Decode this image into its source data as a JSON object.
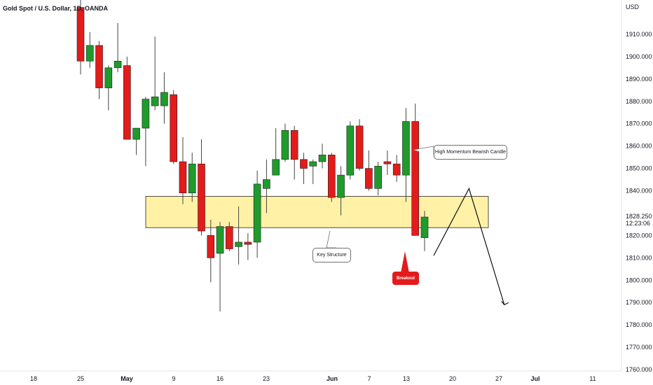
{
  "header": {
    "title": "Gold Spot / U.S. Dollar, 1D, OANDA",
    "currency": "USD"
  },
  "price": {
    "last": "1828.250",
    "countdown": "12:23:06"
  },
  "annotations": {
    "momentum_label": "High Momentum Bearish Candle",
    "structure_label": "Key Structure",
    "breakout_label": "Breakout"
  },
  "colors": {
    "bull": "#1e9b2b",
    "bear": "#e31b1b",
    "zone_fill": "#fff2a6",
    "zone_border": "#222222",
    "wick": "#444444"
  },
  "chart_data": {
    "type": "candlestick",
    "title": "Gold Spot / U.S. Dollar, 1D, OANDA",
    "xlabel": "",
    "ylabel": "USD",
    "ylim": [
      1760,
      1920
    ],
    "grid": false,
    "y_ticks": [
      "1910.000",
      "1900.000",
      "1890.000",
      "1880.000",
      "1870.000",
      "1860.000",
      "1850.000",
      "1840.000",
      "1820.000",
      "1810.000",
      "1800.000",
      "1790.000",
      "1780.000",
      "1770.000",
      "1760.000"
    ],
    "x_ticks": [
      {
        "label": "18",
        "bold": false
      },
      {
        "label": "25",
        "bold": false
      },
      {
        "label": "May",
        "bold": true
      },
      {
        "label": "9",
        "bold": false
      },
      {
        "label": "16",
        "bold": false
      },
      {
        "label": "23",
        "bold": false
      },
      {
        "label": "Jun",
        "bold": true
      },
      {
        "label": "7",
        "bold": false
      },
      {
        "label": "13",
        "bold": false
      },
      {
        "label": "20",
        "bold": false
      },
      {
        "label": "27",
        "bold": false
      },
      {
        "label": "Jul",
        "bold": true
      },
      {
        "label": "11",
        "bold": false
      }
    ],
    "candles": [
      {
        "o": 1922.0,
        "h": 1926.0,
        "l": 1892.0,
        "c": 1898.0
      },
      {
        "o": 1898.0,
        "h": 1911.0,
        "l": 1895.0,
        "c": 1905.0
      },
      {
        "o": 1905.0,
        "h": 1907.0,
        "l": 1881.0,
        "c": 1886.0
      },
      {
        "o": 1886.0,
        "h": 1896.0,
        "l": 1876.0,
        "c": 1895.0
      },
      {
        "o": 1895.0,
        "h": 1915.0,
        "l": 1893.0,
        "c": 1898.0
      },
      {
        "o": 1896.0,
        "h": 1900.0,
        "l": 1863.0,
        "c": 1863.0
      },
      {
        "o": 1863.0,
        "h": 1868.0,
        "l": 1856.0,
        "c": 1868.0
      },
      {
        "o": 1868.0,
        "h": 1882.0,
        "l": 1851.0,
        "c": 1881.0
      },
      {
        "o": 1878.0,
        "h": 1909.0,
        "l": 1876.0,
        "c": 1882.0
      },
      {
        "o": 1878.0,
        "h": 1893.0,
        "l": 1870.0,
        "c": 1884.0
      },
      {
        "o": 1883.0,
        "h": 1885.0,
        "l": 1852.0,
        "c": 1853.0
      },
      {
        "o": 1853.0,
        "h": 1864.0,
        "l": 1834.0,
        "c": 1839.0
      },
      {
        "o": 1839.0,
        "h": 1857.0,
        "l": 1835.0,
        "c": 1852.0
      },
      {
        "o": 1852.0,
        "h": 1863.0,
        "l": 1820.0,
        "c": 1822.0
      },
      {
        "o": 1820.0,
        "h": 1827.0,
        "l": 1799.0,
        "c": 1810.0
      },
      {
        "o": 1812.0,
        "h": 1826.0,
        "l": 1786.0,
        "c": 1824.0
      },
      {
        "o": 1824.0,
        "h": 1826.0,
        "l": 1813.0,
        "c": 1814.0
      },
      {
        "o": 1815.0,
        "h": 1833.0,
        "l": 1807.0,
        "c": 1817.0
      },
      {
        "o": 1817.0,
        "h": 1821.0,
        "l": 1809.0,
        "c": 1816.0
      },
      {
        "o": 1817.0,
        "h": 1849.0,
        "l": 1810.0,
        "c": 1843.0
      },
      {
        "o": 1841.0,
        "h": 1854.0,
        "l": 1830.0,
        "c": 1845.0
      },
      {
        "o": 1847.0,
        "h": 1868.0,
        "l": 1847.0,
        "c": 1854.0
      },
      {
        "o": 1854.0,
        "h": 1870.0,
        "l": 1853.0,
        "c": 1867.0
      },
      {
        "o": 1867.0,
        "h": 1869.0,
        "l": 1845.0,
        "c": 1854.0
      },
      {
        "o": 1854.0,
        "h": 1857.0,
        "l": 1843.0,
        "c": 1850.0
      },
      {
        "o": 1851.0,
        "h": 1854.0,
        "l": 1843.0,
        "c": 1853.0
      },
      {
        "o": 1853.0,
        "h": 1861.0,
        "l": 1850.0,
        "c": 1856.0
      },
      {
        "o": 1856.0,
        "h": 1857.0,
        "l": 1835.0,
        "c": 1837.0
      },
      {
        "o": 1837.0,
        "h": 1851.0,
        "l": 1829.0,
        "c": 1847.0
      },
      {
        "o": 1847.0,
        "h": 1871.0,
        "l": 1845.0,
        "c": 1869.0
      },
      {
        "o": 1869.0,
        "h": 1872.0,
        "l": 1849.0,
        "c": 1850.0
      },
      {
        "o": 1850.0,
        "h": 1858.0,
        "l": 1840.0,
        "c": 1841.0
      },
      {
        "o": 1841.0,
        "h": 1853.0,
        "l": 1838.0,
        "c": 1851.0
      },
      {
        "o": 1853.0,
        "h": 1858.0,
        "l": 1847.0,
        "c": 1852.0
      },
      {
        "o": 1852.0,
        "h": 1856.0,
        "l": 1844.0,
        "c": 1847.0
      },
      {
        "o": 1847.0,
        "h": 1877.0,
        "l": 1835.0,
        "c": 1871.0
      },
      {
        "o": 1871.0,
        "h": 1879.0,
        "l": 1820.0,
        "c": 1820.0
      },
      {
        "o": 1819.0,
        "h": 1831.0,
        "l": 1813.0,
        "c": 1828.25
      }
    ],
    "zones": [
      {
        "label": "Key Structure",
        "from": 1823.5,
        "to": 1837.5
      }
    ],
    "projection": [
      {
        "day_offset": 0,
        "price": 1811.0
      },
      {
        "day_offset": 4.5,
        "price": 1841.0
      },
      {
        "day_offset": 9,
        "price": 1789.0
      }
    ],
    "last_price": 1828.25
  }
}
